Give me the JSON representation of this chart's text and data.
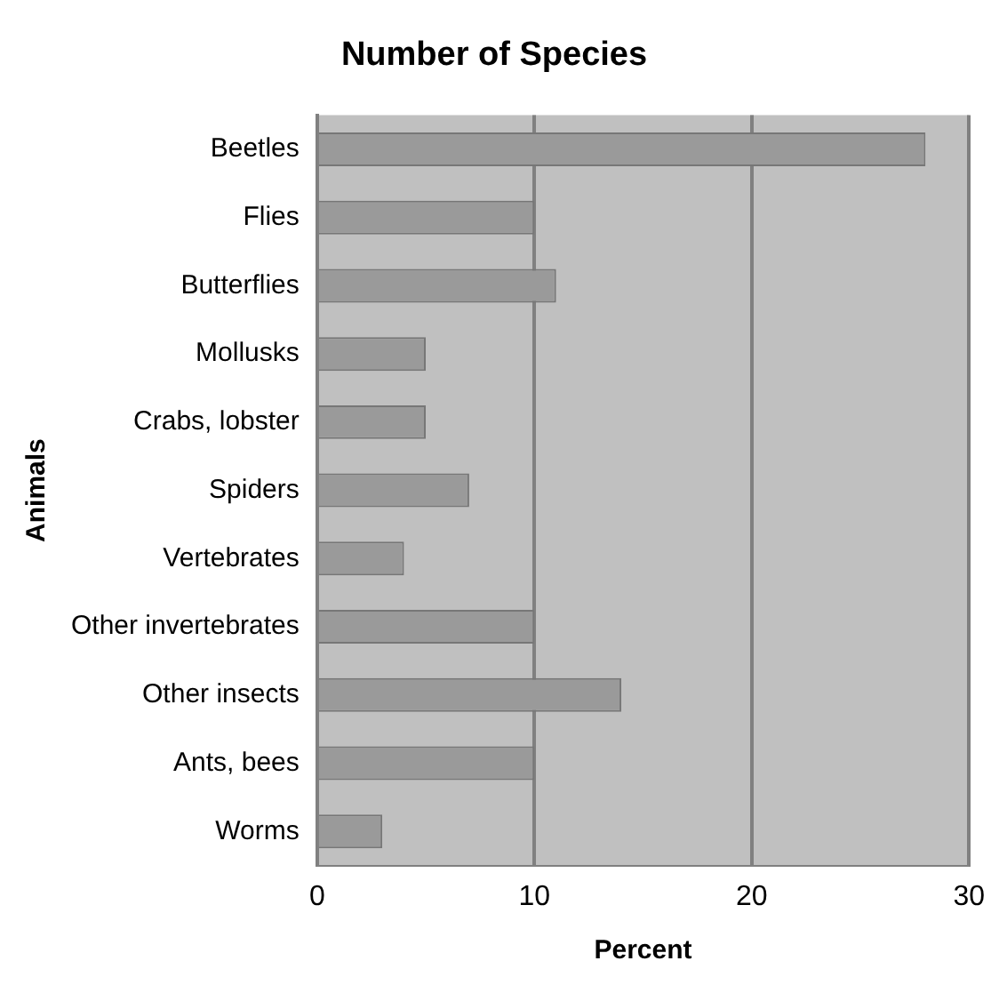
{
  "chart_data": {
    "type": "bar",
    "orientation": "horizontal",
    "title": "Number of Species",
    "xlabel": "Percent",
    "ylabel": "Animals",
    "categories": [
      "Beetles",
      "Flies",
      "Butterflies",
      "Mollusks",
      "Crabs, lobster",
      "Spiders",
      "Vertebrates",
      "Other invertebrates",
      "Other insects",
      "Ants, bees",
      "Worms"
    ],
    "values": [
      28,
      10,
      11,
      5,
      5,
      7,
      4,
      10,
      14,
      10,
      3
    ],
    "color": "#9a9a9a",
    "xlim": [
      0,
      30
    ],
    "xticks": [
      0,
      10,
      20,
      30
    ],
    "grid": "x",
    "legend": false
  }
}
